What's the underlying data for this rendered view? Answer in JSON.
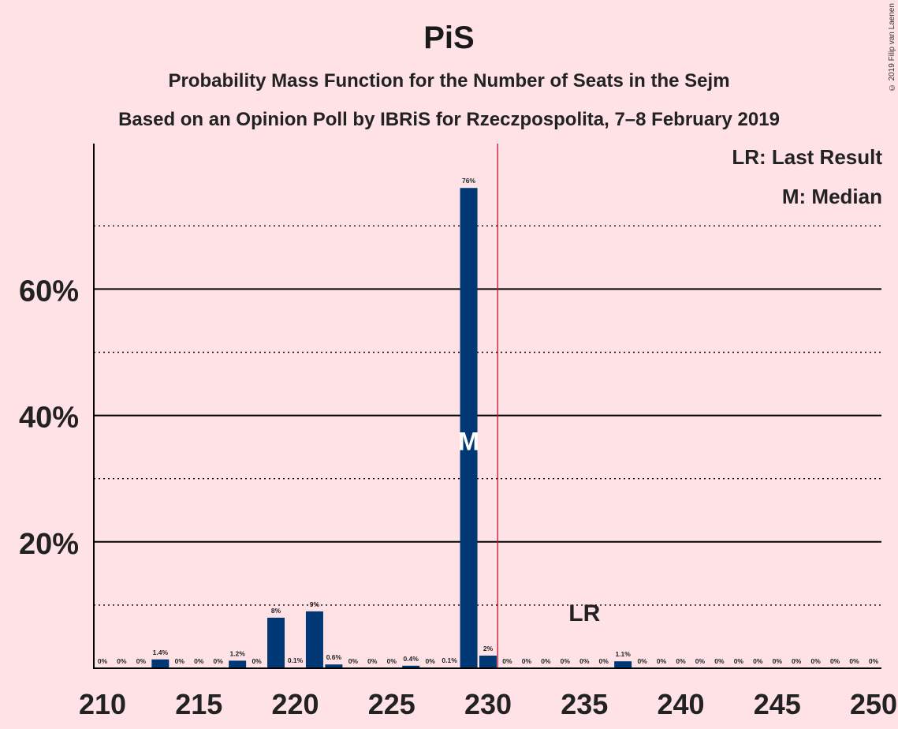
{
  "chart_data": {
    "type": "bar",
    "title": "PiS",
    "subtitle": "Probability Mass Function for the Number of Seats in the Sejm",
    "subtitle2": "Based on an Opinion Poll by IBRiS for Rzeczpospolita, 7–8 February 2019",
    "xlabel": "",
    "ylabel": "",
    "ylim": [
      0,
      80
    ],
    "xlim": [
      210,
      250
    ],
    "x_ticks": [
      "210",
      "215",
      "220",
      "225",
      "230",
      "235",
      "240",
      "245",
      "250"
    ],
    "y_ticks": [
      "20%",
      "40%",
      "60%"
    ],
    "grid": true,
    "categories": [
      210,
      211,
      212,
      213,
      214,
      215,
      216,
      217,
      218,
      219,
      220,
      221,
      222,
      223,
      224,
      225,
      226,
      227,
      228,
      229,
      230,
      231,
      232,
      233,
      234,
      235,
      236,
      237,
      238,
      239,
      240,
      241,
      242,
      243,
      244,
      245,
      246,
      247,
      248,
      249,
      250
    ],
    "values": [
      0,
      0,
      0,
      1.4,
      0,
      0,
      0,
      1.2,
      0,
      8,
      0.1,
      9,
      0.6,
      0,
      0,
      0,
      0.4,
      0,
      0.1,
      76,
      2,
      0,
      0,
      0,
      0,
      0,
      0,
      1.1,
      0,
      0,
      0,
      0,
      0,
      0,
      0,
      0,
      0,
      0,
      0,
      0,
      0
    ],
    "data_labels": [
      "0%",
      "0%",
      "0%",
      "1.4%",
      "0%",
      "0%",
      "0%",
      "1.2%",
      "0%",
      "8%",
      "0.1%",
      "9%",
      "0.6%",
      "0%",
      "0%",
      "0%",
      "0.4%",
      "0%",
      "0.1%",
      "76%",
      "2%",
      "0%",
      "0%",
      "0%",
      "0%",
      "0%",
      "0%",
      "1.1%",
      "0%",
      "0%",
      "0%",
      "0%",
      "0%",
      "0%",
      "0%",
      "0%",
      "0%",
      "0%",
      "0%",
      "0%",
      "0%"
    ],
    "majority_line": 230.5,
    "last_result": 235,
    "median": 229,
    "median_marker": "M",
    "last_result_marker": "LR",
    "legend": [
      "LR: Last Result",
      "M: Median"
    ],
    "legend_placement": "top-right",
    "colors": {
      "background": "#FFE2E6",
      "bar": "#003876",
      "majority_line": "#C8102E",
      "text": "#222222"
    }
  },
  "copyright": "© 2019 Filip van Laenen"
}
